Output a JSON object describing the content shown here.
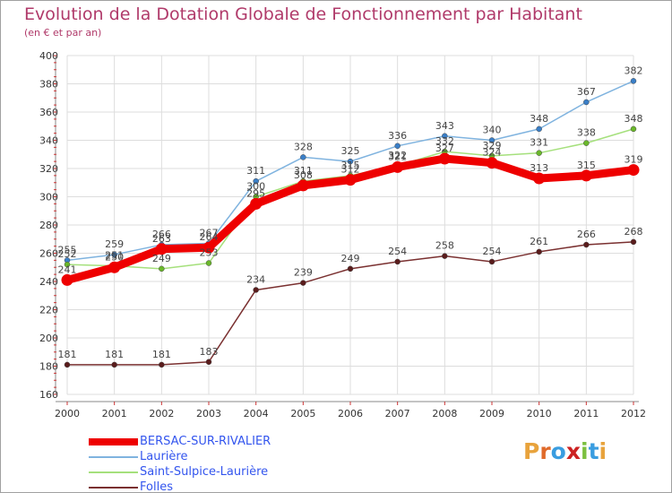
{
  "header": {
    "title": "Evolution de la Dotation Globale de Fonctionnement par Habitant",
    "subtitle": "(en € et par an)"
  },
  "logo": {
    "text": "Proxiti",
    "letters": [
      "P",
      "r",
      "o",
      "x",
      "i",
      "t",
      "i"
    ],
    "letter_colors": [
      "#e8a33c",
      "#e06a2a",
      "#3a9de0",
      "#cc2222",
      "#7cc040",
      "#3a9de0",
      "#e8a33c"
    ]
  },
  "chart_data": {
    "type": "line",
    "title": "Evolution de la Dotation Globale de Fonctionnement par Habitant",
    "subtitle": "(en € et par an)",
    "x": [
      "2000",
      "2001",
      "2002",
      "2003",
      "2004",
      "2005",
      "2006",
      "2007",
      "2008",
      "2009",
      "2010",
      "2011",
      "2012"
    ],
    "ylim": [
      160,
      400
    ],
    "yticks": [
      160,
      180,
      200,
      220,
      240,
      260,
      280,
      300,
      320,
      340,
      360,
      380,
      400
    ],
    "grid": true,
    "legend_position": "bottom-left",
    "series": [
      {
        "name": "BERSAC-SUR-RIVALIER",
        "color": "#ee0000",
        "marker": "#ee0000",
        "emphasis": true,
        "values": [
          241,
          250,
          263,
          264,
          295,
          308,
          312,
          321,
          327,
          324,
          313,
          315,
          319
        ]
      },
      {
        "name": "Laurière",
        "color": "#7fb3df",
        "marker": "#3a7fc8",
        "emphasis": false,
        "values": [
          255,
          259,
          266,
          267,
          311,
          328,
          325,
          336,
          343,
          340,
          348,
          367,
          382
        ]
      },
      {
        "name": "Saint-Sulpice-Laurière",
        "color": "#a5e07c",
        "marker": "#6ab82a",
        "emphasis": false,
        "values": [
          252,
          251,
          249,
          253,
          300,
          311,
          315,
          322,
          332,
          329,
          331,
          338,
          348
        ]
      },
      {
        "name": "Folles",
        "color": "#7a3030",
        "marker": "#5a1c1c",
        "emphasis": false,
        "values": [
          181,
          181,
          181,
          183,
          234,
          239,
          249,
          254,
          258,
          254,
          261,
          266,
          268
        ]
      }
    ]
  }
}
